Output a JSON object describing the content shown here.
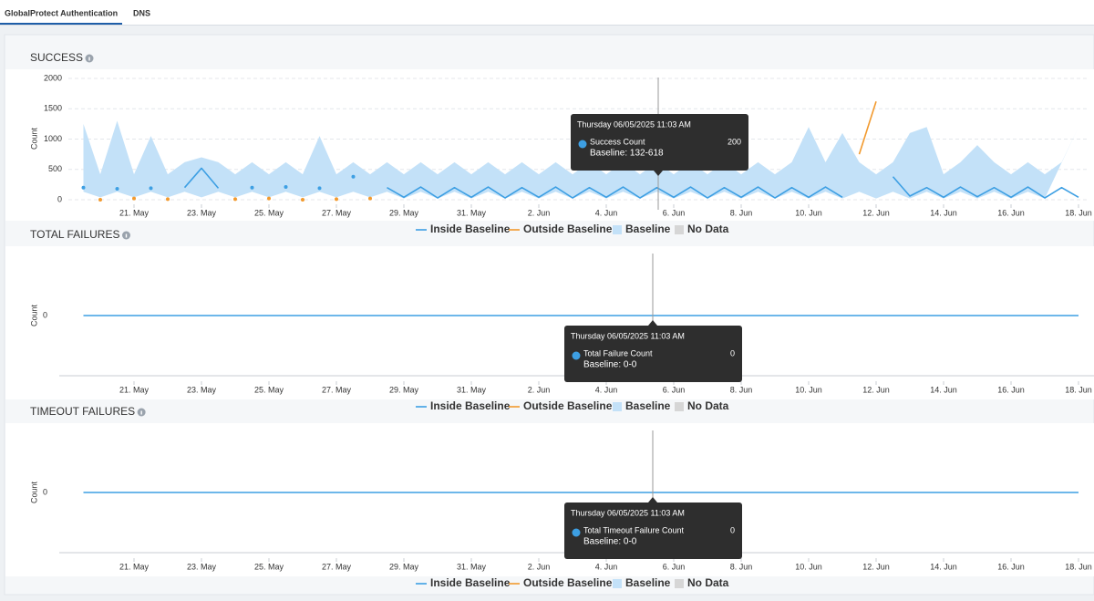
{
  "tabs": [
    "GlobalProtect Authentication",
    "DNS"
  ],
  "chart_data": [
    {
      "type": "line",
      "title": "SUCCESS",
      "y_label": "Count",
      "categories": [
        null,
        null,
        null,
        "21. May",
        null,
        null,
        null,
        "23. May",
        null,
        null,
        null,
        "25. May",
        null,
        null,
        null,
        "27. May",
        null,
        null,
        null,
        "29. May",
        null,
        null,
        null,
        "31. May",
        null,
        null,
        null,
        "2. Jun",
        null,
        null,
        null,
        "4. Jun",
        null,
        null,
        null,
        "6. Jun",
        null,
        null,
        null,
        "8. Jun",
        null,
        null,
        null,
        "10. Jun",
        null,
        null,
        null,
        "12. Jun",
        null,
        null,
        null,
        "14. Jun",
        null,
        null,
        null,
        "16. Jun",
        null,
        null,
        null,
        "18. Jun"
      ],
      "ylim": [
        0,
        2000
      ],
      "yticks": [
        0,
        500,
        1000,
        1500,
        2000
      ],
      "grid": true,
      "series": [
        {
          "name": "Inside Baseline",
          "color": "#3d9fe3",
          "values": [
            200,
            null,
            180,
            null,
            190,
            null,
            200,
            520,
            190,
            null,
            200,
            null,
            210,
            null,
            190,
            null,
            380,
            null,
            200,
            40,
            210,
            30,
            200,
            40,
            210,
            30,
            200,
            40,
            210,
            30,
            200,
            40,
            210,
            30,
            200,
            40,
            210,
            30,
            200,
            40,
            210,
            30,
            200,
            40,
            210,
            40,
            null,
            null,
            380,
            60,
            200,
            40,
            210,
            50,
            200,
            40,
            210,
            30,
            200,
            40
          ]
        },
        {
          "name": "Outside Baseline",
          "color": "#f29a2e",
          "values": [
            null,
            0,
            null,
            20,
            null,
            10,
            null,
            null,
            null,
            10,
            null,
            20,
            null,
            0,
            null,
            10,
            null,
            20,
            null,
            null,
            null,
            null,
            null,
            null,
            null,
            null,
            null,
            null,
            null,
            null,
            null,
            null,
            null,
            null,
            null,
            null,
            null,
            null,
            null,
            null,
            null,
            null,
            null,
            null,
            null,
            null,
            750,
            1620,
            null,
            null,
            null,
            null,
            null,
            null,
            null,
            null,
            null,
            null,
            null,
            null
          ]
        },
        {
          "name": "Baseline",
          "color": "#c3e1f8",
          "lower": [
            132,
            40,
            132,
            40,
            132,
            40,
            132,
            40,
            132,
            40,
            132,
            40,
            132,
            40,
            132,
            40,
            132,
            40,
            132,
            20,
            132,
            20,
            132,
            20,
            132,
            20,
            132,
            20,
            132,
            20,
            132,
            20,
            132,
            20,
            132,
            20,
            132,
            20,
            132,
            20,
            132,
            20,
            132,
            20,
            132,
            20,
            132,
            20,
            132,
            20,
            132,
            20,
            132,
            20,
            132,
            20,
            132,
            20
          ],
          "upper": [
            1250,
            420,
            1300,
            420,
            1050,
            420,
            618,
            700,
            618,
            420,
            618,
            420,
            618,
            420,
            1050,
            420,
            618,
            420,
            618,
            420,
            618,
            420,
            618,
            420,
            618,
            420,
            618,
            420,
            618,
            420,
            618,
            420,
            618,
            420,
            618,
            420,
            618,
            420,
            618,
            420,
            618,
            420,
            618,
            1200,
            618,
            1100,
            618,
            420,
            618,
            1100,
            1200,
            420,
            618,
            900,
            618,
            420,
            618,
            420,
            618,
            1200
          ]
        }
      ],
      "no_data": {
        "name": "No Data",
        "color": "#d6d6d6"
      },
      "tooltip": {
        "title": "Thursday 06/05/2025 11:03 AM",
        "label": "Success Count",
        "value": 200,
        "baseline": "Baseline: 132-618"
      }
    },
    {
      "type": "line",
      "title": "TOTAL FAILURES",
      "y_label": "Count",
      "categories": [
        null,
        null,
        null,
        "21. May",
        null,
        null,
        null,
        "23. May",
        null,
        null,
        null,
        "25. May",
        null,
        null,
        null,
        "27. May",
        null,
        null,
        null,
        "29. May",
        null,
        null,
        null,
        "31. May",
        null,
        null,
        null,
        "2. Jun",
        null,
        null,
        null,
        "4. Jun",
        null,
        null,
        null,
        "6. Jun",
        null,
        null,
        null,
        "8. Jun",
        null,
        null,
        null,
        "10. Jun",
        null,
        null,
        null,
        "12. Jun",
        null,
        null,
        null,
        "14. Jun",
        null,
        null,
        null,
        "16. Jun",
        null,
        null,
        null,
        "18. Jun"
      ],
      "ylim": [
        -1,
        1
      ],
      "yticks": [
        0
      ],
      "grid": false,
      "series": [
        {
          "name": "Inside Baseline",
          "color": "#3d9fe3",
          "values": [
            0,
            0,
            0,
            0,
            0,
            0,
            0,
            0,
            0,
            0,
            0,
            0,
            0,
            0,
            0,
            0,
            0,
            0,
            0,
            0,
            0,
            0,
            0,
            0,
            0,
            0,
            0,
            0,
            0,
            0,
            0,
            0,
            0,
            0,
            0,
            0,
            0,
            0,
            0,
            0,
            0,
            0,
            0,
            0,
            0,
            0,
            0,
            0,
            0,
            0,
            0,
            0,
            0,
            0,
            0,
            0,
            0,
            0,
            0,
            0
          ]
        },
        {
          "name": "Outside Baseline",
          "color": "#f29a2e"
        },
        {
          "name": "Baseline",
          "color": "#c3e1f8"
        }
      ],
      "no_data": {
        "name": "No Data",
        "color": "#d6d6d6"
      },
      "tooltip": {
        "title": "Thursday 06/05/2025 11:03 AM",
        "label": "Total Failure Count",
        "value": 0,
        "baseline": "Baseline: 0-0"
      }
    },
    {
      "type": "line",
      "title": "TIMEOUT FAILURES",
      "y_label": "Count",
      "categories": [
        null,
        null,
        null,
        "21. May",
        null,
        null,
        null,
        "23. May",
        null,
        null,
        null,
        "25. May",
        null,
        null,
        null,
        "27. May",
        null,
        null,
        null,
        "29. May",
        null,
        null,
        null,
        "31. May",
        null,
        null,
        null,
        "2. Jun",
        null,
        null,
        null,
        "4. Jun",
        null,
        null,
        null,
        "6. Jun",
        null,
        null,
        null,
        "8. Jun",
        null,
        null,
        null,
        "10. Jun",
        null,
        null,
        null,
        "12. Jun",
        null,
        null,
        null,
        "14. Jun",
        null,
        null,
        null,
        "16. Jun",
        null,
        null,
        null,
        "18. Jun"
      ],
      "ylim": [
        -1,
        1
      ],
      "yticks": [
        0
      ],
      "grid": false,
      "series": [
        {
          "name": "Inside Baseline",
          "color": "#3d9fe3",
          "values": [
            0,
            0,
            0,
            0,
            0,
            0,
            0,
            0,
            0,
            0,
            0,
            0,
            0,
            0,
            0,
            0,
            0,
            0,
            0,
            0,
            0,
            0,
            0,
            0,
            0,
            0,
            0,
            0,
            0,
            0,
            0,
            0,
            0,
            0,
            0,
            0,
            0,
            0,
            0,
            0,
            0,
            0,
            0,
            0,
            0,
            0,
            0,
            0,
            0,
            0,
            0,
            0,
            0,
            0,
            0,
            0,
            0,
            0,
            0,
            0
          ]
        },
        {
          "name": "Outside Baseline",
          "color": "#f29a2e"
        },
        {
          "name": "Baseline",
          "color": "#c3e1f8"
        }
      ],
      "no_data": {
        "name": "No Data",
        "color": "#d6d6d6"
      },
      "tooltip": {
        "title": "Thursday 06/05/2025 11:03 AM",
        "label": "Total Timeout Failure Count",
        "value": 0,
        "baseline": "Baseline: 0-0"
      }
    }
  ]
}
